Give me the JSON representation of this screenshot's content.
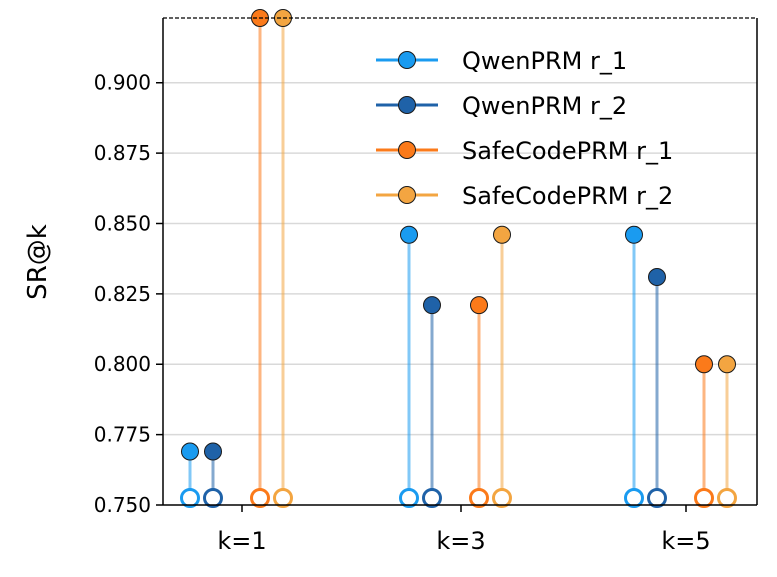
{
  "chart_data": {
    "type": "lollipop",
    "title": "",
    "xlabel": "",
    "ylabel": "SR@k",
    "categories": [
      "k=1",
      "k=3",
      "k=5"
    ],
    "ylim": [
      0.75,
      0.923
    ],
    "yticks": [
      "0.750",
      "0.775",
      "0.800",
      "0.825",
      "0.850",
      "0.875",
      "0.900"
    ],
    "ytick_values": [
      0.75,
      0.775,
      0.8,
      0.825,
      0.85,
      0.875,
      0.9
    ],
    "grid": "horizontal",
    "legend_position": "top-right",
    "series": [
      {
        "name": "QwenPRM r_1",
        "color": "#1a9bf0",
        "values": [
          0.769,
          0.846,
          0.846
        ]
      },
      {
        "name": "QwenPRM r_2",
        "color": "#1f62a8",
        "values": [
          0.769,
          0.821,
          0.831
        ]
      },
      {
        "name": "SafeCodePRM r_1",
        "color": "#fb7a1a",
        "values": [
          0.923,
          0.821,
          0.8
        ]
      },
      {
        "name": "SafeCodePRM r_2",
        "color": "#f3a541",
        "values": [
          0.923,
          0.846,
          0.8
        ]
      }
    ]
  }
}
